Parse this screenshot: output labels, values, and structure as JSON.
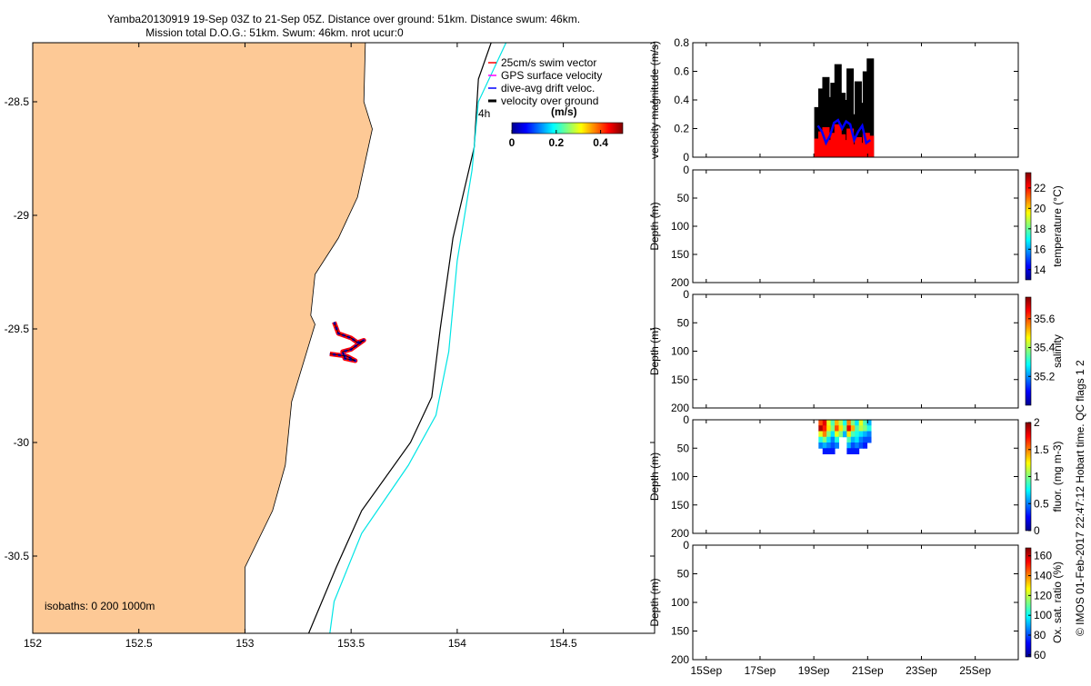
{
  "header": {
    "line1": "Yamba20130919 19-Sep 03Z to 21-Sep 05Z. Distance over ground: 51km. Distance swum: 46km.",
    "line2": "Mission total D.O.G.: 51km. Swum: 46km. nrot ucur:0"
  },
  "side_note": "© IMOS 01-Feb-2017 22:47:12 Hobart time. QC flags 1  2",
  "colors": {
    "land": "#fdc996",
    "isobath_200": "#000000",
    "isobath_1000": "#00e5e5",
    "swim": "#ff0000",
    "gps": "#ff00ff",
    "drift": "#0000ff",
    "vog": "#000000"
  },
  "chart_data": [
    {
      "type": "map",
      "id": "track_map",
      "xlim": [
        152.0,
        154.93
      ],
      "ylim": [
        -30.84,
        -28.24
      ],
      "xticks": [
        "152",
        "152.5",
        "153",
        "153.5",
        "154",
        "154.5"
      ],
      "xtick_values": [
        152,
        152.5,
        153,
        153.5,
        154,
        154.5
      ],
      "yticks": [
        "-28.5",
        "-29",
        "-29.5",
        "-30",
        "-30.5"
      ],
      "ytick_values": [
        -28.5,
        -29,
        -29.5,
        -30,
        -30.5
      ],
      "coastline": [
        [
          153.57,
          -28.14
        ],
        [
          153.56,
          -28.5
        ],
        [
          153.6,
          -28.62
        ],
        [
          153.53,
          -28.92
        ],
        [
          153.44,
          -29.1
        ],
        [
          153.33,
          -29.26
        ],
        [
          153.31,
          -29.44
        ],
        [
          153.33,
          -29.48
        ],
        [
          153.22,
          -29.82
        ],
        [
          153.19,
          -30.1
        ],
        [
          153.13,
          -30.3
        ],
        [
          153.0,
          -30.55
        ],
        [
          153.0,
          -30.84
        ]
      ],
      "isobath_200": [
        [
          154.16,
          -28.24
        ],
        [
          154.1,
          -28.4
        ],
        [
          154.08,
          -28.7
        ],
        [
          153.98,
          -29.1
        ],
        [
          153.92,
          -29.5
        ],
        [
          153.88,
          -29.8
        ],
        [
          153.78,
          -30.0
        ],
        [
          153.55,
          -30.3
        ],
        [
          153.43,
          -30.55
        ],
        [
          153.3,
          -30.84
        ]
      ],
      "isobath_1000": [
        [
          154.23,
          -28.24
        ],
        [
          154.1,
          -28.5
        ],
        [
          154.07,
          -28.8
        ],
        [
          154.0,
          -29.2
        ],
        [
          153.96,
          -29.6
        ],
        [
          153.9,
          -29.88
        ],
        [
          153.77,
          -30.1
        ],
        [
          153.55,
          -30.4
        ],
        [
          153.42,
          -30.7
        ],
        [
          153.4,
          -30.84
        ]
      ],
      "track": [
        [
          153.42,
          -29.47
        ],
        [
          153.44,
          -29.52
        ],
        [
          153.5,
          -29.54
        ],
        [
          153.53,
          -29.56
        ],
        [
          153.56,
          -29.55
        ],
        [
          153.5,
          -29.59
        ],
        [
          153.46,
          -29.6
        ],
        [
          153.47,
          -29.63
        ],
        [
          153.52,
          -29.64
        ],
        [
          153.48,
          -29.62
        ],
        [
          153.4,
          -29.61
        ]
      ],
      "legend": [
        "25cm/s swim vector",
        "GPS surface velocity",
        "dive-avg drift veloc.",
        "velocity over ground"
      ],
      "legend_time": "4h",
      "colorbar": {
        "label": "(m/s)",
        "ticks": [
          "0",
          "0.2",
          "0.4"
        ],
        "tick_values": [
          0,
          0.2,
          0.4
        ],
        "range": [
          0,
          0.5
        ]
      },
      "isobaths_text": "isobaths: 0   200  1000m"
    },
    {
      "type": "bar",
      "id": "velocity_panel",
      "ylabel": "velocity magnitude (m/s)",
      "ylim": [
        0,
        0.8
      ],
      "yticks": [
        "0",
        "0.2",
        "0.4",
        "0.6",
        "0.8"
      ],
      "ytick_values": [
        0,
        0.2,
        0.4,
        0.6,
        0.8
      ],
      "xlim": [
        14.5,
        26.6
      ],
      "series": [
        {
          "t": [
            19.15,
            19.3,
            19.45,
            19.6,
            19.75,
            19.9,
            20.05,
            20.2,
            20.35,
            20.5,
            20.65,
            20.8,
            20.95,
            21.1
          ],
          "values": [
            0.35,
            0.48,
            0.56,
            0.42,
            0.52,
            0.65,
            0.45,
            0.4,
            0.62,
            0.3,
            0.53,
            0.38,
            0.6,
            0.69
          ]
        },
        {
          "t": [
            19.15,
            19.3,
            19.45,
            19.6,
            19.75,
            19.9,
            20.05,
            20.2,
            20.35,
            20.5,
            20.65,
            20.8,
            20.95,
            21.1
          ],
          "values": [
            0.13,
            0.18,
            0.21,
            0.12,
            0.17,
            0.23,
            0.16,
            0.12,
            0.2,
            0.09,
            0.14,
            0.1,
            0.17,
            0.15
          ]
        },
        {
          "t": [
            19.15,
            19.3,
            19.45,
            19.6,
            19.75,
            19.9,
            20.05,
            20.2,
            20.35,
            20.5,
            20.65,
            20.8,
            20.95,
            21.1
          ],
          "values": [
            0.22,
            0.18,
            0.1,
            0.15,
            0.24,
            0.26,
            0.2,
            0.25,
            0.23,
            0.12,
            0.18,
            0.22,
            0.1,
            0.12
          ]
        }
      ]
    },
    {
      "type": "heatmap",
      "id": "temperature_panel",
      "ylabel": "Depth (m)",
      "yticks": [
        "0",
        "50",
        "100",
        "150",
        "200"
      ],
      "ytick_values": [
        0,
        50,
        100,
        150,
        200
      ],
      "ylim": [
        200,
        0
      ],
      "colorbar": {
        "label": "temperature (°C)",
        "ticks": [
          "14",
          "16",
          "18",
          "20",
          "22"
        ],
        "tick_values": [
          14,
          16,
          18,
          20,
          22
        ],
        "range": [
          13,
          23.5
        ]
      }
    },
    {
      "type": "heatmap",
      "id": "salinity_panel",
      "ylabel": "Depth (m)",
      "yticks": [
        "0",
        "50",
        "100",
        "150",
        "200"
      ],
      "ytick_values": [
        0,
        50,
        100,
        150,
        200
      ],
      "ylim": [
        200,
        0
      ],
      "colorbar": {
        "label": "salinity",
        "ticks": [
          "35.2",
          "35.4",
          "35.6"
        ],
        "tick_values": [
          35.2,
          35.4,
          35.6
        ],
        "range": [
          35.0,
          35.75
        ]
      }
    },
    {
      "type": "heatmap",
      "id": "fluorescence_panel",
      "ylabel": "Depth (m)",
      "yticks": [
        "0",
        "50",
        "100",
        "150",
        "200"
      ],
      "ytick_values": [
        0,
        50,
        100,
        150,
        200
      ],
      "ylim": [
        200,
        0
      ],
      "xlim": [
        14.5,
        26.6
      ],
      "colorbar": {
        "label": "fluor. (mg m-3)",
        "ticks": [
          "0",
          "0.5",
          "1",
          "1.5",
          "2"
        ],
        "tick_values": [
          0,
          0.5,
          1,
          1.5,
          2
        ],
        "range": [
          0,
          2
        ]
      },
      "cells": [
        [
          19.25,
          5,
          1.6
        ],
        [
          19.4,
          5,
          1.8
        ],
        [
          19.55,
          5,
          1.2
        ],
        [
          19.7,
          5,
          0.9
        ],
        [
          19.85,
          5,
          1.4
        ],
        [
          20.0,
          5,
          1.1
        ],
        [
          20.15,
          5,
          0.8
        ],
        [
          20.3,
          5,
          1.5
        ],
        [
          20.45,
          5,
          1.0
        ],
        [
          20.6,
          5,
          0.7
        ],
        [
          20.75,
          5,
          1.2
        ],
        [
          20.9,
          5,
          0.9
        ],
        [
          21.05,
          5,
          0.6
        ],
        [
          19.25,
          15,
          1.9
        ],
        [
          19.4,
          15,
          1.7
        ],
        [
          19.55,
          15,
          1.3
        ],
        [
          19.7,
          15,
          1.0
        ],
        [
          19.85,
          15,
          1.6
        ],
        [
          20.0,
          15,
          1.3
        ],
        [
          20.15,
          15,
          1.0
        ],
        [
          20.3,
          15,
          1.8
        ],
        [
          20.45,
          15,
          1.4
        ],
        [
          20.6,
          15,
          0.9
        ],
        [
          20.75,
          15,
          1.1
        ],
        [
          20.9,
          15,
          1.0
        ],
        [
          21.05,
          15,
          0.8
        ],
        [
          19.25,
          25,
          1.2
        ],
        [
          19.4,
          25,
          1.5
        ],
        [
          19.55,
          25,
          1.0
        ],
        [
          19.7,
          25,
          0.7
        ],
        [
          19.85,
          25,
          1.2
        ],
        [
          20.0,
          25,
          1.0
        ],
        [
          20.15,
          25,
          0.6
        ],
        [
          20.3,
          25,
          1.3
        ],
        [
          20.45,
          25,
          0.9
        ],
        [
          20.6,
          25,
          0.8
        ],
        [
          20.75,
          25,
          0.7
        ],
        [
          20.9,
          25,
          0.6
        ],
        [
          21.05,
          25,
          0.5
        ],
        [
          19.25,
          35,
          0.8
        ],
        [
          19.4,
          35,
          1.0
        ],
        [
          19.55,
          35,
          0.7
        ],
        [
          19.7,
          35,
          0.5
        ],
        [
          19.85,
          35,
          0.8
        ],
        [
          20.3,
          35,
          0.9
        ],
        [
          20.45,
          35,
          0.6
        ],
        [
          20.6,
          35,
          0.7
        ],
        [
          20.75,
          35,
          0.5
        ],
        [
          20.9,
          35,
          0.4
        ],
        [
          21.05,
          35,
          0.4
        ],
        [
          19.25,
          45,
          0.5
        ],
        [
          19.4,
          45,
          0.6
        ],
        [
          19.55,
          45,
          0.5
        ],
        [
          19.7,
          45,
          0.4
        ],
        [
          19.85,
          45,
          0.5
        ],
        [
          20.3,
          45,
          0.6
        ],
        [
          20.45,
          45,
          0.4
        ],
        [
          20.6,
          45,
          0.5
        ],
        [
          20.75,
          45,
          0.4
        ],
        [
          20.9,
          45,
          0.3
        ],
        [
          19.4,
          55,
          0.3
        ],
        [
          19.55,
          55,
          0.3
        ],
        [
          19.7,
          55,
          0.3
        ],
        [
          20.3,
          55,
          0.3
        ],
        [
          20.45,
          55,
          0.3
        ],
        [
          20.6,
          55,
          0.3
        ]
      ]
    },
    {
      "type": "heatmap",
      "id": "oxygen_panel",
      "ylabel": "Depth (m)",
      "yticks": [
        "0",
        "50",
        "100",
        "150",
        "200"
      ],
      "ytick_values": [
        0,
        50,
        100,
        150,
        200
      ],
      "ylim": [
        200,
        0
      ],
      "xlim": [
        14.5,
        26.6
      ],
      "xticks": [
        "15Sep",
        "17Sep",
        "19Sep",
        "21Sep",
        "23Sep",
        "25Sep"
      ],
      "xtick_values": [
        15,
        17,
        19,
        21,
        23,
        25
      ],
      "colorbar": {
        "label": "Ox. sat. ratio (%)",
        "ticks": [
          "60",
          "80",
          "100",
          "120",
          "140",
          "160"
        ],
        "tick_values": [
          60,
          80,
          100,
          120,
          140,
          160
        ],
        "range": [
          58,
          168
        ]
      }
    }
  ]
}
